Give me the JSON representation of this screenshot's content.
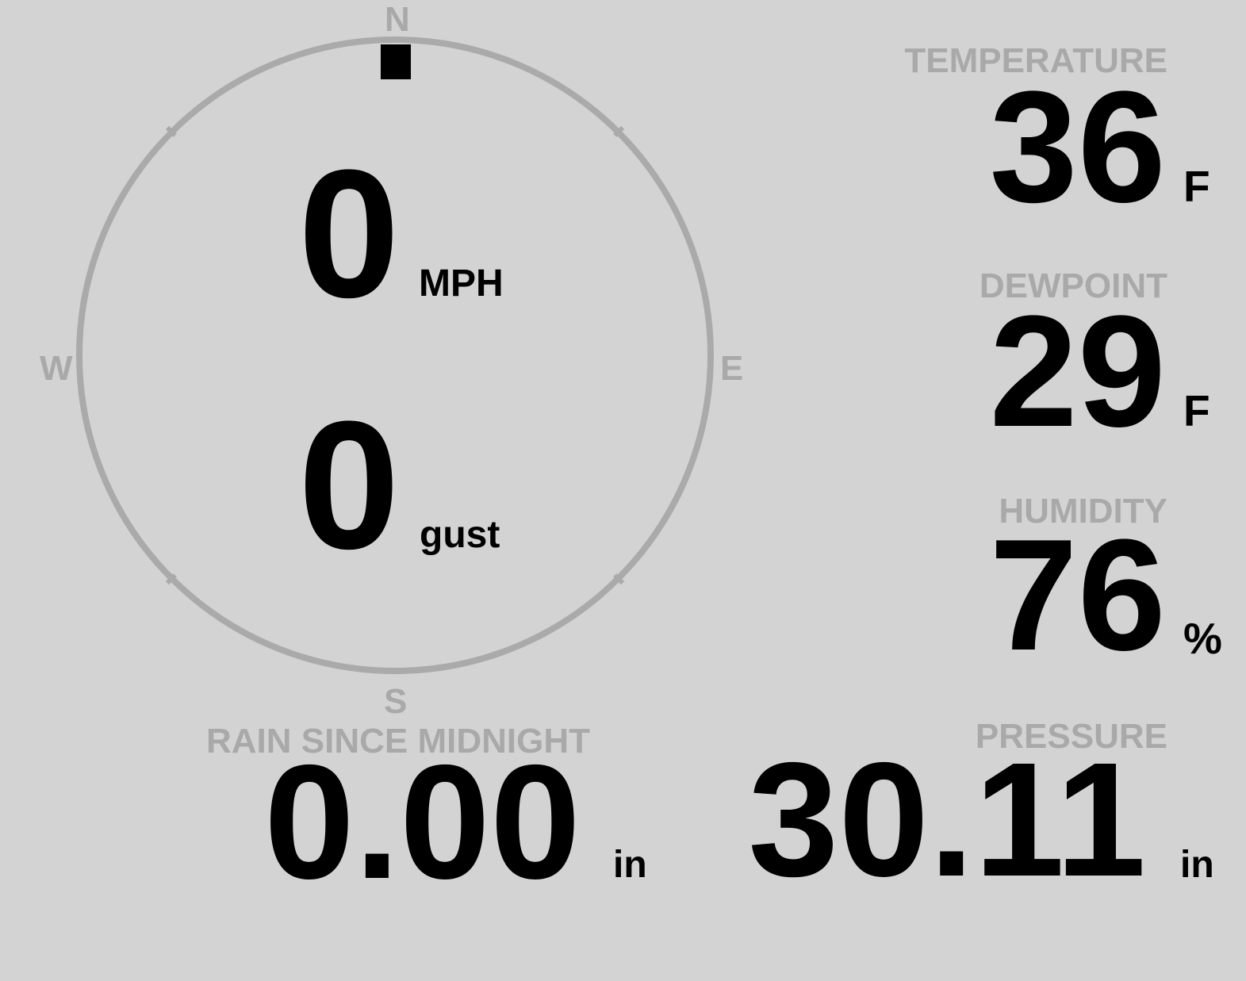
{
  "colors": {
    "background": "#d3d3d3",
    "label": "#a9a9a9",
    "value": "#000000",
    "ring": "#aaaaaa"
  },
  "compass": {
    "north": "N",
    "south": "S",
    "east": "E",
    "west": "W",
    "wind_direction_deg": 0
  },
  "wind": {
    "speed": "0",
    "speed_unit": "MPH",
    "gust": "0",
    "gust_unit": "gust"
  },
  "temperature": {
    "label": "TEMPERATURE",
    "value": "36",
    "unit": "F"
  },
  "dewpoint": {
    "label": "DEWPOINT",
    "value": "29",
    "unit": "F"
  },
  "humidity": {
    "label": "HUMIDITY",
    "value": "76",
    "unit": "%"
  },
  "rain": {
    "label": "RAIN SINCE MIDNIGHT",
    "value": "0.00",
    "unit": "in"
  },
  "pressure": {
    "label": "PRESSURE",
    "value": "30.11",
    "unit": "in"
  }
}
